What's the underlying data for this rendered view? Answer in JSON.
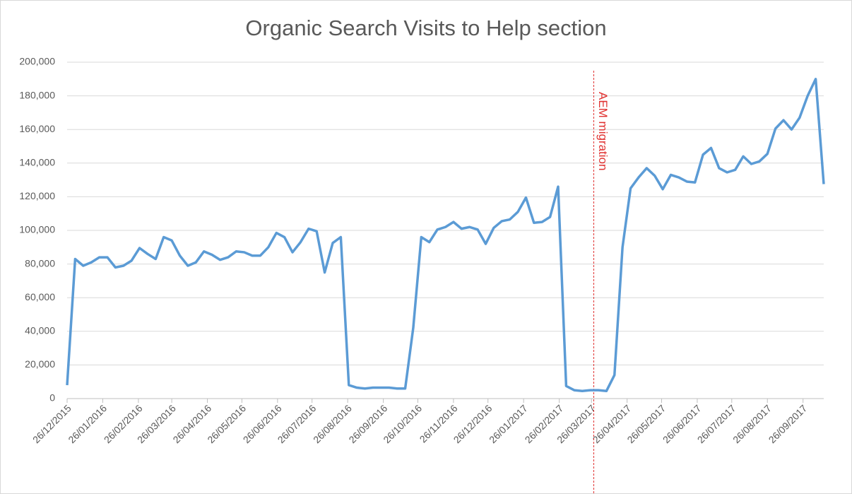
{
  "chart_data": {
    "type": "line",
    "title": "Organic Search Visits to Help section",
    "x": [
      "2015-12-26",
      "2016-01-02",
      "2016-01-09",
      "2016-01-16",
      "2016-01-23",
      "2016-01-30",
      "2016-02-06",
      "2016-02-13",
      "2016-02-20",
      "2016-02-27",
      "2016-03-05",
      "2016-03-12",
      "2016-03-19",
      "2016-03-26",
      "2016-04-02",
      "2016-04-09",
      "2016-04-16",
      "2016-04-23",
      "2016-04-30",
      "2016-05-07",
      "2016-05-14",
      "2016-05-21",
      "2016-05-28",
      "2016-06-04",
      "2016-06-11",
      "2016-06-18",
      "2016-06-25",
      "2016-07-02",
      "2016-07-09",
      "2016-07-16",
      "2016-07-23",
      "2016-07-30",
      "2016-08-06",
      "2016-08-13",
      "2016-08-20",
      "2016-08-27",
      "2016-09-03",
      "2016-09-10",
      "2016-09-17",
      "2016-09-24",
      "2016-10-01",
      "2016-10-08",
      "2016-10-15",
      "2016-10-22",
      "2016-10-29",
      "2016-11-05",
      "2016-11-12",
      "2016-11-19",
      "2016-11-26",
      "2016-12-03",
      "2016-12-10",
      "2016-12-17",
      "2016-12-24",
      "2016-12-31",
      "2017-01-07",
      "2017-01-14",
      "2017-01-21",
      "2017-01-28",
      "2017-02-04",
      "2017-02-11",
      "2017-02-18",
      "2017-02-25",
      "2017-03-04",
      "2017-03-11",
      "2017-03-18",
      "2017-03-25",
      "2017-04-01",
      "2017-04-08",
      "2017-04-15",
      "2017-04-22",
      "2017-04-29",
      "2017-05-06",
      "2017-05-13",
      "2017-05-20",
      "2017-05-27",
      "2017-06-03",
      "2017-06-10",
      "2017-06-17",
      "2017-06-24",
      "2017-07-01",
      "2017-07-08",
      "2017-07-15",
      "2017-07-22",
      "2017-07-29",
      "2017-08-05",
      "2017-08-12",
      "2017-08-19",
      "2017-08-26",
      "2017-09-02",
      "2017-09-09",
      "2017-09-16",
      "2017-09-23",
      "2017-09-30",
      "2017-10-07",
      "2017-10-14"
    ],
    "series": [
      {
        "name": "Organic Search Visits",
        "color": "#5b9bd5",
        "values": [
          8000,
          83000,
          79000,
          81000,
          84000,
          84000,
          78000,
          79000,
          82000,
          89500,
          86000,
          83000,
          96000,
          94000,
          85000,
          79000,
          81000,
          87500,
          85500,
          82500,
          84000,
          87500,
          87000,
          85000,
          85000,
          90000,
          98500,
          96000,
          87000,
          93000,
          101000,
          99500,
          75000,
          92500,
          96000,
          8000,
          6500,
          6000,
          6500,
          6500,
          6500,
          6000,
          6000,
          42000,
          96000,
          93000,
          100500,
          102000,
          105000,
          101000,
          102000,
          100500,
          92000,
          101500,
          105500,
          106500,
          111000,
          119500,
          104500,
          105000,
          108000,
          126000,
          7500,
          5000,
          4500,
          5000,
          5000,
          4500,
          14000,
          90000,
          125000,
          131500,
          137000,
          132500,
          124500,
          133000,
          131500,
          129000,
          128500,
          145000,
          149000,
          137000,
          134500,
          136000,
          144000,
          139500,
          141000,
          145500,
          160500,
          165500,
          160000,
          167000,
          180000,
          190000,
          127500
        ]
      }
    ],
    "xlim": [
      "2015-12-26",
      "2017-10-14"
    ],
    "xticks": [
      {
        "value": "2015-12-26",
        "label": "26/12/2015"
      },
      {
        "value": "2016-01-26",
        "label": "26/01/2016"
      },
      {
        "value": "2016-02-26",
        "label": "26/02/2016"
      },
      {
        "value": "2016-03-26",
        "label": "26/03/2016"
      },
      {
        "value": "2016-04-26",
        "label": "26/04/2016"
      },
      {
        "value": "2016-05-26",
        "label": "26/05/2016"
      },
      {
        "value": "2016-06-26",
        "label": "26/06/2016"
      },
      {
        "value": "2016-07-26",
        "label": "26/07/2016"
      },
      {
        "value": "2016-08-26",
        "label": "26/08/2016"
      },
      {
        "value": "2016-09-26",
        "label": "26/09/2016"
      },
      {
        "value": "2016-10-26",
        "label": "26/10/2016"
      },
      {
        "value": "2016-11-26",
        "label": "26/11/2016"
      },
      {
        "value": "2016-12-26",
        "label": "26/12/2016"
      },
      {
        "value": "2017-01-26",
        "label": "26/01/2017"
      },
      {
        "value": "2017-02-26",
        "label": "26/02/2017"
      },
      {
        "value": "2017-03-26",
        "label": "26/03/2017"
      },
      {
        "value": "2017-04-26",
        "label": "26/04/2017"
      },
      {
        "value": "2017-05-26",
        "label": "26/05/2017"
      },
      {
        "value": "2017-06-26",
        "label": "26/06/2017"
      },
      {
        "value": "2017-07-26",
        "label": "26/07/2017"
      },
      {
        "value": "2017-08-26",
        "label": "26/08/2017"
      },
      {
        "value": "2017-09-26",
        "label": "26/09/2017"
      }
    ],
    "ylim": [
      0,
      200000
    ],
    "yticks": [
      0,
      {
        "value": 20000,
        "label": "20,000"
      },
      {
        "value": 40000,
        "label": "40,000"
      },
      {
        "value": 60000,
        "label": "60,000"
      },
      {
        "value": 80000,
        "label": "80,000"
      },
      {
        "value": 100000,
        "label": "100,000"
      },
      {
        "value": 120000,
        "label": "120,000"
      },
      {
        "value": 140000,
        "label": "140,000"
      },
      {
        "value": 160000,
        "label": "160,000"
      },
      {
        "value": 180000,
        "label": "180,000"
      },
      {
        "value": 200000,
        "label": "200,000"
      }
    ],
    "grid": true,
    "annotations": [
      {
        "text": "AEM migration",
        "x": "2017-03-28",
        "color": "#e0302f"
      }
    ]
  }
}
